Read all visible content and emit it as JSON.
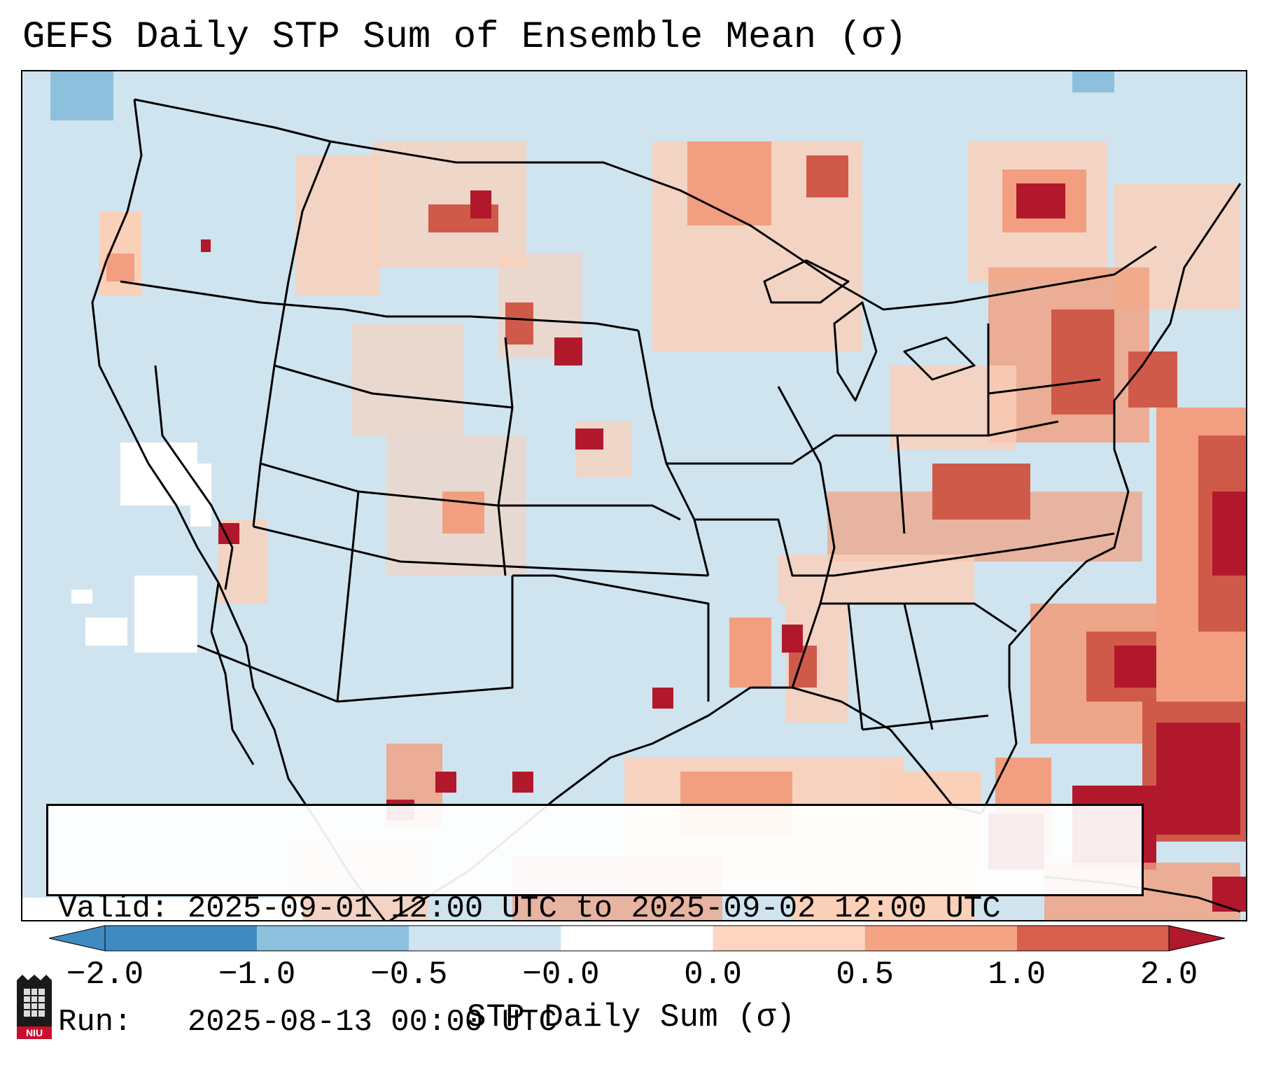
{
  "title": "GEFS Daily STP Sum of Ensemble Mean (σ)",
  "info": {
    "valid_line": "Valid: 2025-09-01 12:00 UTC to 2025-09-02 12:00 UTC",
    "run_line": "Run:   2025-08-13 00:00 UTC"
  },
  "colorbar": {
    "label": "STP Daily Sum (σ)",
    "ticks": [
      "−2.0",
      "−1.0",
      "−0.5",
      "−0.0",
      "0.0",
      "0.5",
      "1.0",
      "2.0"
    ],
    "colors": [
      "#3f8bc1",
      "#8cc0dd",
      "#cfe4ef",
      "#ffffff",
      "#fdd5c0",
      "#f4a483",
      "#d6604d",
      "#b2182b"
    ],
    "extend": "both"
  },
  "legend_colors": {
    "ocean_land_base": "#cfe4ef",
    "light_positive": "#fbd0b9",
    "moderate_positive": "#f19f80",
    "strong_positive": "#d05a4a",
    "extreme_positive": "#b2182b",
    "negative": "#8cc0dd",
    "near_zero": "#ffffff"
  },
  "logo": {
    "text": "NIU",
    "name": "niu-logo-icon"
  }
}
